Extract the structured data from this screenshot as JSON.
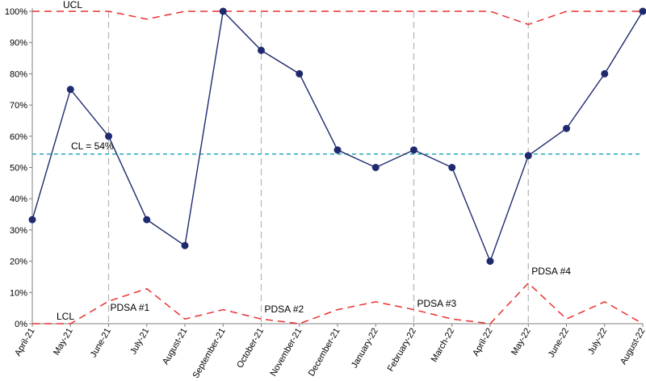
{
  "chart_data": {
    "type": "line",
    "categories": [
      "April-21",
      "May-21",
      "June-21",
      "July-21",
      "August-21",
      "September-21",
      "October-21",
      "November-21",
      "December-21",
      "January-22",
      "February-22",
      "March-22",
      "April-22",
      "May-22",
      "June-22",
      "July-22",
      "August-22"
    ],
    "series": [
      {
        "role": "data",
        "color": "#1f2a6e",
        "values": [
          33.3,
          75,
          60,
          33.3,
          25,
          100,
          87.5,
          80,
          55.6,
          50,
          55.6,
          50,
          20,
          53.8,
          62.5,
          80,
          100
        ]
      },
      {
        "name": "UCL",
        "role": "ucl",
        "color": "#e8322f",
        "values": [
          100,
          100,
          100,
          97.5,
          100,
          100,
          100,
          100,
          100,
          100,
          100,
          100,
          100,
          95.8,
          100,
          100,
          100
        ]
      },
      {
        "name": "LCL",
        "role": "lcl",
        "color": "#e8322f",
        "values": [
          0,
          0,
          7.2,
          11.2,
          1.5,
          4.5,
          1.5,
          0,
          4.5,
          7,
          4.5,
          1.5,
          0,
          13,
          1.5,
          7,
          0
        ]
      }
    ],
    "center_line": {
      "label": "CL = 54%",
      "value": 54.3,
      "color": "#23a8b8"
    },
    "phase_lines": [
      {
        "label": "PDSA #1",
        "category_index": 2
      },
      {
        "label": "PDSA #2",
        "category_index": 6
      },
      {
        "label": "PDSA #3",
        "category_index": 10
      },
      {
        "label": "PDSA #4",
        "category_index": 13
      }
    ],
    "ylim": [
      0,
      100
    ],
    "yticks": [
      0,
      10,
      20,
      30,
      40,
      50,
      60,
      70,
      80,
      90,
      100
    ],
    "ytick_labels": [
      "0%",
      "10%",
      "20%",
      "30%",
      "40%",
      "50%",
      "60%",
      "70%",
      "80%",
      "90%",
      "100%"
    ],
    "grid": false,
    "legend": "none"
  }
}
